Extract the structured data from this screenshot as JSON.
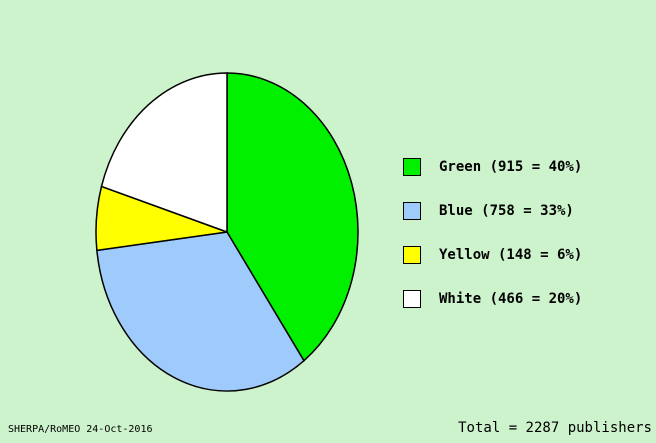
{
  "chart_data": {
    "type": "pie",
    "slices": [
      {
        "name": "Green",
        "count": 915,
        "percent": 40,
        "label": "Green (915 = 40%)",
        "color": "#00f000"
      },
      {
        "name": "Blue",
        "count": 758,
        "percent": 33,
        "label": "Blue (758 = 33%)",
        "color": "#9ecbfb"
      },
      {
        "name": "Yellow",
        "count": 148,
        "percent": 6,
        "label": "Yellow (148 = 6%)",
        "color": "#ffff00"
      },
      {
        "name": "White",
        "count": 466,
        "percent": 20,
        "label": "White (466 = 20%)",
        "color": "#ffffff"
      }
    ],
    "legend_position": "right",
    "total_label": "Total = 2287 publishers",
    "source_label": "SHERPA/RoMEO 24-Oct-2016"
  },
  "colors": {
    "background": "#cdf3cd",
    "outline": "#000000"
  }
}
